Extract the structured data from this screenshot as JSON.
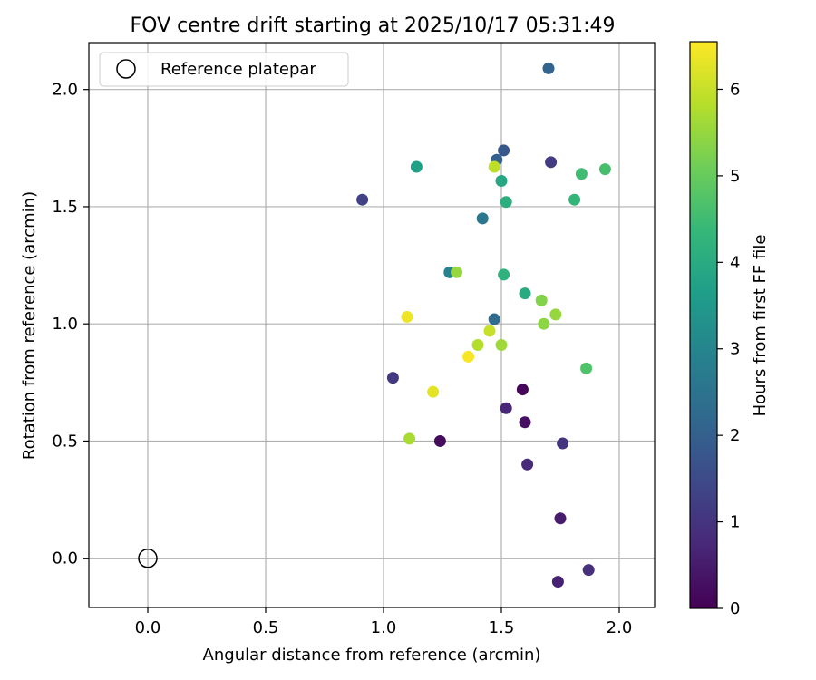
{
  "chart_data": {
    "type": "scatter",
    "title": "FOV centre drift starting at 2025/10/17 05:31:49",
    "xlabel": "Angular distance from reference (arcmin)",
    "ylabel": "Rotation from reference (arcmin)",
    "xlim": [
      -0.25,
      2.15
    ],
    "ylim": [
      -0.21,
      2.2
    ],
    "xticks": [
      0.0,
      0.5,
      1.0,
      1.5,
      2.0
    ],
    "xtick_labels": [
      "0.0",
      "0.5",
      "1.0",
      "1.5",
      "2.0"
    ],
    "yticks": [
      0.0,
      0.5,
      1.0,
      1.5,
      2.0
    ],
    "ytick_labels": [
      "0.0",
      "0.5",
      "1.0",
      "1.5",
      "2.0"
    ],
    "grid": true,
    "legend": {
      "location": "top-left",
      "entries": [
        "Reference platepar"
      ]
    },
    "reference_point": {
      "x": 0.0,
      "y": 0.0,
      "label": "Reference platepar"
    },
    "colorbar": {
      "label": "Hours from first FF file",
      "colormap": "viridis",
      "range": [
        0,
        6.55
      ],
      "ticks": [
        0,
        1,
        2,
        3,
        4,
        5,
        6
      ],
      "tick_labels": [
        "0",
        "1",
        "2",
        "3",
        "4",
        "5",
        "6"
      ]
    },
    "points": [
      {
        "x": 1.59,
        "y": 0.72,
        "hours": 0.1
      },
      {
        "x": 1.24,
        "y": 0.5,
        "hours": 0.2
      },
      {
        "x": 1.6,
        "y": 0.58,
        "hours": 0.3
      },
      {
        "x": 1.75,
        "y": 0.17,
        "hours": 0.5
      },
      {
        "x": 1.74,
        "y": -0.1,
        "hours": 0.6
      },
      {
        "x": 1.52,
        "y": 0.64,
        "hours": 0.7
      },
      {
        "x": 1.61,
        "y": 0.4,
        "hours": 0.8
      },
      {
        "x": 1.87,
        "y": -0.05,
        "hours": 0.9
      },
      {
        "x": 1.76,
        "y": 0.49,
        "hours": 1.0
      },
      {
        "x": 1.04,
        "y": 0.77,
        "hours": 1.1
      },
      {
        "x": 1.71,
        "y": 1.69,
        "hours": 1.2
      },
      {
        "x": 0.91,
        "y": 1.53,
        "hours": 1.3
      },
      {
        "x": 1.51,
        "y": 1.74,
        "hours": 1.8
      },
      {
        "x": 1.48,
        "y": 1.7,
        "hours": 2.0
      },
      {
        "x": 1.7,
        "y": 2.09,
        "hours": 2.1
      },
      {
        "x": 1.47,
        "y": 1.02,
        "hours": 2.3
      },
      {
        "x": 1.42,
        "y": 1.45,
        "hours": 2.6
      },
      {
        "x": 1.28,
        "y": 1.22,
        "hours": 2.9
      },
      {
        "x": 1.14,
        "y": 1.67,
        "hours": 3.7
      },
      {
        "x": 1.5,
        "y": 1.61,
        "hours": 3.9
      },
      {
        "x": 1.6,
        "y": 1.13,
        "hours": 4.0
      },
      {
        "x": 1.52,
        "y": 1.52,
        "hours": 4.1
      },
      {
        "x": 1.51,
        "y": 1.21,
        "hours": 4.2
      },
      {
        "x": 1.81,
        "y": 1.53,
        "hours": 4.3
      },
      {
        "x": 1.84,
        "y": 1.64,
        "hours": 4.5
      },
      {
        "x": 1.94,
        "y": 1.66,
        "hours": 4.6
      },
      {
        "x": 1.86,
        "y": 0.81,
        "hours": 4.7
      },
      {
        "x": 1.67,
        "y": 1.1,
        "hours": 5.3
      },
      {
        "x": 1.68,
        "y": 1.0,
        "hours": 5.4
      },
      {
        "x": 1.73,
        "y": 1.04,
        "hours": 5.5
      },
      {
        "x": 1.31,
        "y": 1.22,
        "hours": 5.5
      },
      {
        "x": 1.5,
        "y": 0.91,
        "hours": 5.6
      },
      {
        "x": 1.4,
        "y": 0.91,
        "hours": 5.8
      },
      {
        "x": 1.11,
        "y": 0.51,
        "hours": 5.7
      },
      {
        "x": 1.47,
        "y": 1.67,
        "hours": 5.9
      },
      {
        "x": 1.45,
        "y": 0.97,
        "hours": 6.0
      },
      {
        "x": 1.21,
        "y": 0.71,
        "hours": 6.3
      },
      {
        "x": 1.1,
        "y": 1.03,
        "hours": 6.4
      },
      {
        "x": 1.36,
        "y": 0.86,
        "hours": 6.5
      }
    ]
  }
}
